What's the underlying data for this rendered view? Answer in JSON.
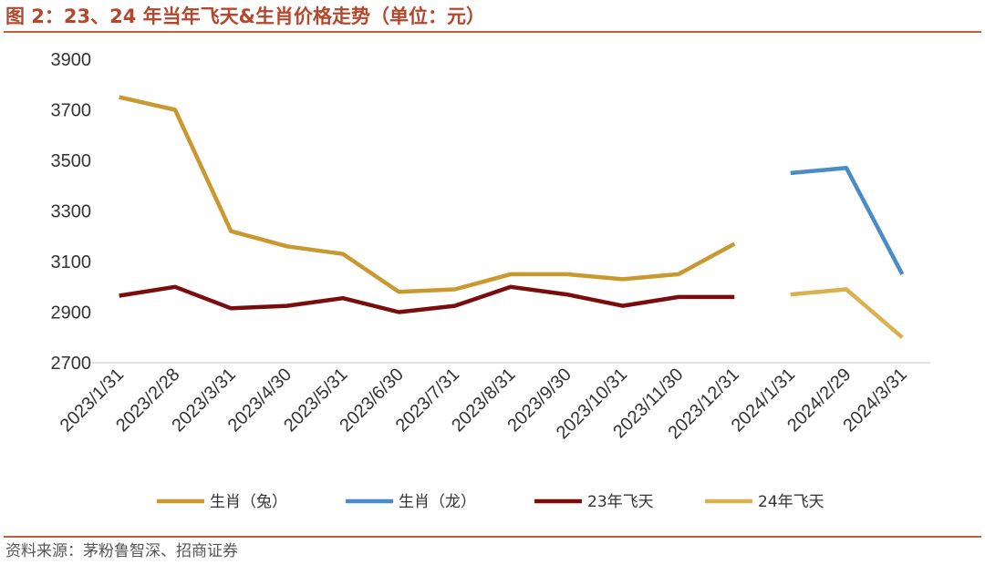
{
  "title": "图 2：23、24 年当年飞天&生肖价格走势（单位：元）",
  "source": "资料来源：茅粉鲁智深、招商证券",
  "chart_data": {
    "type": "line",
    "title": "图 2：23、24 年当年飞天&生肖价格走势（单位：元）",
    "xlabel": "",
    "ylabel": "",
    "ylim": [
      2700,
      3900
    ],
    "yticks": [
      2700,
      2900,
      3100,
      3300,
      3500,
      3700,
      3900
    ],
    "grid": false,
    "legend_position": "bottom",
    "categories": [
      "2023/1/31",
      "2023/2/28",
      "2023/3/31",
      "2023/4/30",
      "2023/5/31",
      "2023/6/30",
      "2023/7/31",
      "2023/8/31",
      "2023/9/30",
      "2023/10/31",
      "2023/11/30",
      "2023/12/31",
      "2024/1/31",
      "2024/2/29",
      "2024/3/31"
    ],
    "series": [
      {
        "name": "生肖（兔）",
        "color": "#c9982f",
        "values": [
          3750,
          3700,
          3220,
          3160,
          3130,
          2980,
          2990,
          3050,
          3050,
          3030,
          3050,
          3170,
          null,
          null,
          null
        ]
      },
      {
        "name": "生肖（龙）",
        "color": "#4a8cc6",
        "values": [
          null,
          null,
          null,
          null,
          null,
          null,
          null,
          null,
          null,
          null,
          null,
          null,
          3450,
          3470,
          3050
        ]
      },
      {
        "name": "23年飞天",
        "color": "#7b0c0c",
        "values": [
          2965,
          3000,
          2915,
          2925,
          2955,
          2900,
          2925,
          3000,
          2970,
          2925,
          2960,
          2960,
          null,
          null,
          null
        ]
      },
      {
        "name": "24年飞天",
        "color": "#dbb04f",
        "values": [
          null,
          null,
          null,
          null,
          null,
          null,
          null,
          null,
          null,
          null,
          null,
          null,
          2970,
          2990,
          2800
        ]
      }
    ]
  }
}
